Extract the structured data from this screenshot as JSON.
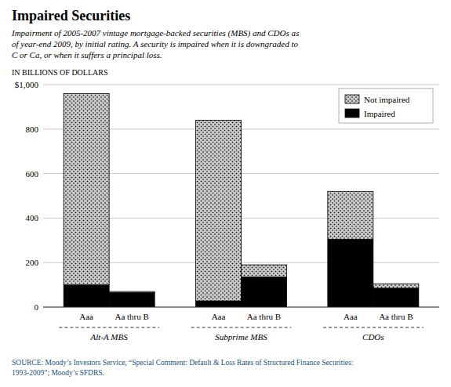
{
  "chart_data": {
    "type": "bar",
    "stacked": true,
    "title": "Impaired Securities",
    "subtitle": "Impairment of 2005-2007 vintage mortgage-backed securities (MBS) and CDOs as\nof year-end 2009, by initial rating. A security is impaired when it is downgraded to\nC or Ca, or when it suffers a principal loss.",
    "y_label": "IN BILLIONS OF DOLLARS",
    "source": "SOURCE: Moody’s Investors Service, “Special Comment: Default & Loss Rates of Structured Finance Securities:\n1993-2009”; Moody’s SFDRS.",
    "groups": [
      "Alt-A MBS",
      "Subprime  MBS",
      "CDOs"
    ],
    "categories": [
      "Aaa",
      "Aa thru B",
      "Aaa",
      "Aa thru B",
      "Aaa",
      "Aa thru B"
    ],
    "series": [
      {
        "name": "Impaired",
        "color": "#000000",
        "values": [
          100,
          65,
          28,
          135,
          305,
          85
        ]
      },
      {
        "name": "Not impaired",
        "color": "#c8c8c8",
        "values": [
          860,
          5,
          812,
          55,
          215,
          20
        ]
      }
    ],
    "ylim": [
      0,
      1000
    ],
    "yticks": [
      0,
      200,
      400,
      600,
      800,
      {
        "value": 1000,
        "label": "$1,000"
      }
    ],
    "grid": true,
    "legend": "upper right"
  }
}
